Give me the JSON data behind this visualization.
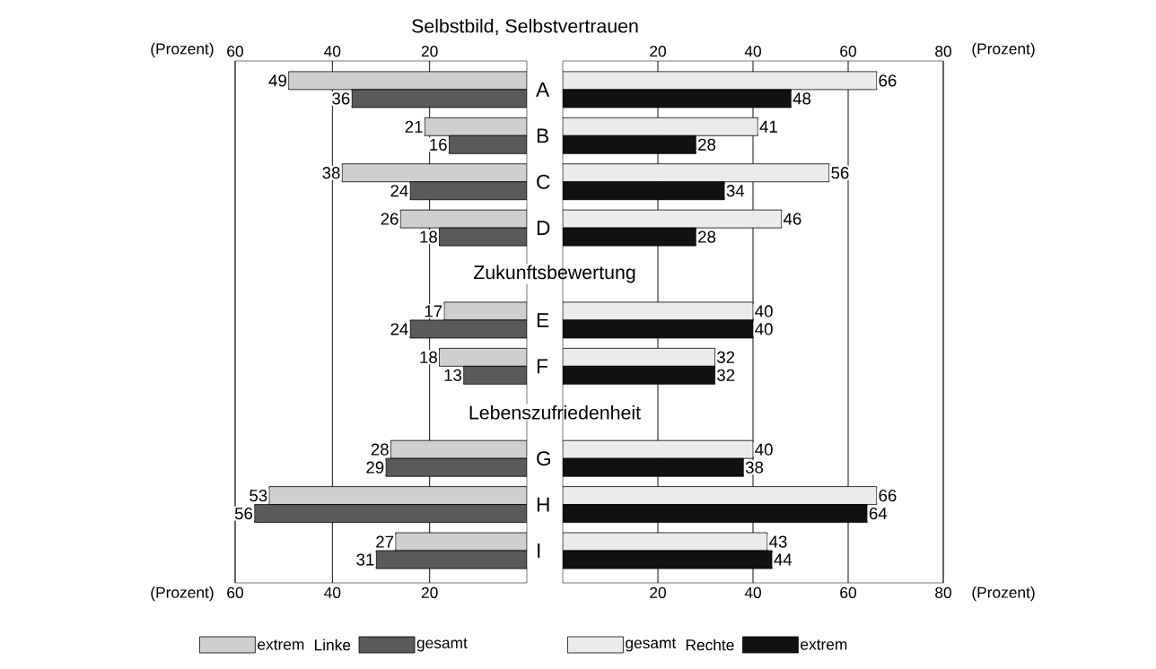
{
  "chart_data": [
    {
      "type": "bar",
      "orientation": "horizontal",
      "title": "Selbstbild, Selbstvertrauen",
      "annotations": [
        "Zukunftsbewertung",
        "Lebenszufriedenheit"
      ],
      "legend_title": "Linke",
      "legend": "bottom",
      "data_labels": true,
      "grid": "x",
      "categories": [
        "A",
        "B",
        "C",
        "D",
        null,
        "E",
        "F",
        null,
        "G",
        "H",
        "I"
      ],
      "series": [
        {
          "name": "extrem",
          "color": "#cfcfcf",
          "values": [
            49,
            21,
            38,
            26,
            null,
            17,
            18,
            null,
            28,
            53,
            27
          ]
        },
        {
          "name": "gesamt",
          "color": "#5a5a5a",
          "values": [
            36,
            16,
            24,
            18,
            null,
            24,
            13,
            null,
            29,
            56,
            31
          ]
        }
      ],
      "xlim": [
        60,
        0
      ],
      "xticks": [
        60,
        40,
        20
      ],
      "xlabel": "(Prozent)",
      "x2lim": [
        60,
        0
      ],
      "x2ticks": [
        60,
        40,
        20
      ],
      "x2label": "(Prozent)"
    },
    {
      "type": "bar",
      "orientation": "horizontal",
      "legend_title": "Rechte",
      "legend": "bottom",
      "data_labels": true,
      "grid": "x",
      "tick_labels": "x",
      "categories": [
        null,
        null,
        null,
        null,
        null,
        null,
        null,
        null,
        null,
        null,
        null
      ],
      "series": [
        {
          "name": "gesamt",
          "color": "#ebebeb",
          "values": [
            66,
            41,
            56,
            46,
            null,
            40,
            32,
            null,
            40,
            66,
            43
          ]
        },
        {
          "name": "extrem",
          "color": "#111111",
          "values": [
            48,
            28,
            34,
            28,
            null,
            40,
            32,
            null,
            38,
            64,
            44
          ]
        }
      ],
      "xlim": [
        0,
        80
      ],
      "xticks": [
        20,
        40,
        60,
        80
      ],
      "xlabel": "(Prozent)",
      "x2lim": [
        0,
        80
      ],
      "x2ticks": [
        20,
        40,
        60,
        80
      ],
      "x2label": "(Prozent)"
    }
  ]
}
